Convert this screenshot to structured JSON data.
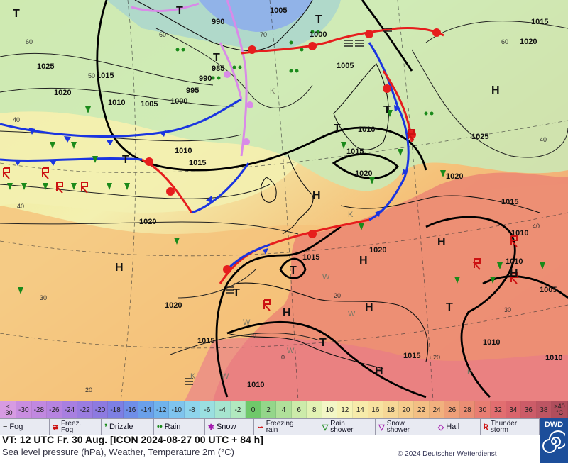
{
  "map": {
    "colors": {
      "sea_cold": "#b9e3b7",
      "mild": "#f3f0b0",
      "warm": "#f5c27a",
      "hot": "#ec8a73",
      "front_cold": "#1a35e0",
      "front_warm": "#e61d1d",
      "front_occluded": "#d98ae8"
    },
    "pressure_labels": [
      "1005",
      "990",
      "1000",
      "1015",
      "1020",
      "1025",
      "1015",
      "1020",
      "1005",
      "1010",
      "1000",
      "995",
      "990",
      "985",
      "1005",
      "1010",
      "1015",
      "1010",
      "1020",
      "1015",
      "1020",
      "1020",
      "1025",
      "1015",
      "1010",
      "1010",
      "1020",
      "1015",
      "1005",
      "1010",
      "1015",
      "1010",
      "1015",
      "1010",
      "1020"
    ],
    "isotherm_labels": [
      "60",
      "50",
      "60",
      "40",
      "70",
      "30",
      "40",
      "60",
      "40",
      "20",
      "20",
      "30",
      "40",
      "0",
      "0",
      "20"
    ],
    "high_marker": "H",
    "low_marker": "T",
    "weather_symbols": [
      "K",
      "K",
      "W",
      "W",
      "W",
      "W",
      "W",
      "K",
      "K"
    ]
  },
  "scale": {
    "min_label_a": "<",
    "min_label_b": "-30",
    "values": [
      "-30",
      "-28",
      "-26",
      "-24",
      "-22",
      "-20",
      "-18",
      "-16",
      "-14",
      "-12",
      "-10",
      "-8",
      "-6",
      "-4",
      "-2",
      "0",
      "2",
      "4",
      "6",
      "8",
      "10",
      "12",
      "14",
      "16",
      "18",
      "20",
      "22",
      "24",
      "26",
      "28",
      "30",
      "32",
      "34",
      "36",
      "38"
    ],
    "colors": [
      "#c98de0",
      "#c188e0",
      "#b683e0",
      "#a87fe0",
      "#9a7ce0",
      "#8d7ae0",
      "#7d7fe3",
      "#6f8ee8",
      "#6aa0ea",
      "#70b3ec",
      "#7fc4ee",
      "#8ed4ec",
      "#9adfe0",
      "#a6e5cf",
      "#b1e9bf",
      "#6fc86a",
      "#94d68a",
      "#b0e09a",
      "#ccebaa",
      "#e2f2b4",
      "#f3f7c6",
      "#f6f3b6",
      "#f7ebaa",
      "#f7e2a0",
      "#f6d796",
      "#f5cc8c",
      "#f3bf84",
      "#f1b17e",
      "#ee9f78",
      "#eb8e74",
      "#e87d72",
      "#e26e70",
      "#d9646c",
      "#cc5c68",
      "#bd5563"
    ],
    "max_label_a": "≥40",
    "max_label_b": "°C"
  },
  "legend": {
    "items": [
      {
        "icon": "fog-icon",
        "symbol": "≡",
        "label": "Fog",
        "color": "#222"
      },
      {
        "icon": "freezing-fog-icon",
        "symbol": "≆",
        "label": "Freez.\nFog",
        "color": "#c11"
      },
      {
        "icon": "drizzle-icon",
        "symbol": "❜",
        "label": "Drizzle",
        "color": "#1a8a1a"
      },
      {
        "icon": "rain-icon",
        "symbol": "••",
        "label": "Rain",
        "color": "#1a8a1a"
      },
      {
        "icon": "snow-icon",
        "symbol": "✱",
        "label": "Snow",
        "color": "#a21caf"
      },
      {
        "icon": "freezing-rain-icon",
        "symbol": "∽",
        "label": "Freezing\nrain",
        "color": "#c11"
      },
      {
        "icon": "rain-shower-icon",
        "symbol": "▽",
        "label": "Rain\nshower",
        "color": "#1a8a1a"
      },
      {
        "icon": "snow-shower-icon",
        "symbol": "▽",
        "label": "Snow\nshower",
        "color": "#a21caf"
      },
      {
        "icon": "hail-icon",
        "symbol": "◇",
        "label": "Hail",
        "color": "#a21caf"
      },
      {
        "icon": "thunderstorm-icon",
        "symbol": "Ʀ",
        "label": "Thunder\nstorm",
        "color": "#c11"
      }
    ]
  },
  "footer": {
    "valid_time": "VT: 12 UTC Fr.  30 Aug. [ICON 2024-08-27  00 UTC + 84 h]",
    "description": "Sea level pressure (hPa), Weather, Temperature 2m (°C)",
    "copyright": "© 2024 Deutscher Wetterdienst",
    "logo_text": "DWD"
  }
}
